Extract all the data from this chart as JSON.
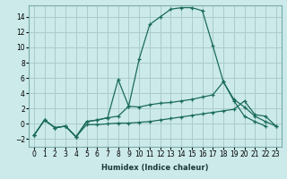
{
  "xlabel": "Humidex (Indice chaleur)",
  "line_color": "#1a6b5a",
  "bg_color": "#cceaea",
  "grid_color": "#aacccc",
  "ylim": [
    -3,
    15.5
  ],
  "xlim": [
    -0.5,
    23.5
  ],
  "yticks": [
    -2,
    0,
    2,
    4,
    6,
    8,
    10,
    12,
    14
  ],
  "xtick_labels": [
    "0",
    "1",
    "2",
    "3",
    "4",
    "5",
    "6",
    "7",
    "8",
    "9",
    "10",
    "11",
    "12",
    "13",
    "14",
    "15",
    "16",
    "17",
    "18",
    "19",
    "20",
    "21",
    "22",
    "23"
  ],
  "x_peak": [
    0,
    1,
    2,
    3,
    4,
    5,
    6,
    7,
    8,
    9,
    10,
    11,
    12,
    13,
    14,
    15,
    16,
    17,
    18,
    19,
    20,
    21,
    22
  ],
  "y_peak": [
    -1.5,
    0.5,
    -0.5,
    -0.3,
    -1.7,
    0.3,
    0.5,
    0.8,
    5.8,
    2.3,
    8.5,
    13.0,
    14.0,
    15.0,
    15.2,
    15.2,
    14.8,
    10.2,
    5.5,
    3.0,
    1.0,
    0.3,
    -0.3
  ],
  "x_mid": [
    0,
    1,
    2,
    3,
    4,
    5,
    6,
    7,
    8,
    9,
    10,
    11,
    12,
    13,
    14,
    15,
    16,
    17,
    18,
    19,
    20,
    21,
    22,
    23
  ],
  "y_mid": [
    -1.5,
    0.5,
    -0.5,
    -0.3,
    -1.7,
    0.3,
    0.5,
    0.8,
    1.0,
    2.3,
    2.2,
    2.5,
    2.7,
    2.8,
    3.0,
    3.2,
    3.5,
    3.8,
    5.5,
    3.2,
    2.2,
    1.0,
    0.3,
    -0.3
  ],
  "x_flat": [
    0,
    1,
    2,
    3,
    4,
    5,
    6,
    7,
    8,
    9,
    10,
    11,
    12,
    13,
    14,
    15,
    16,
    17,
    18,
    19,
    20,
    21,
    22,
    23
  ],
  "y_flat": [
    -1.5,
    0.5,
    -0.5,
    -0.3,
    -1.7,
    -0.1,
    -0.1,
    0.0,
    0.1,
    0.1,
    0.2,
    0.3,
    0.5,
    0.7,
    0.9,
    1.1,
    1.3,
    1.5,
    1.7,
    1.9,
    3.0,
    1.2,
    1.0,
    -0.3
  ]
}
